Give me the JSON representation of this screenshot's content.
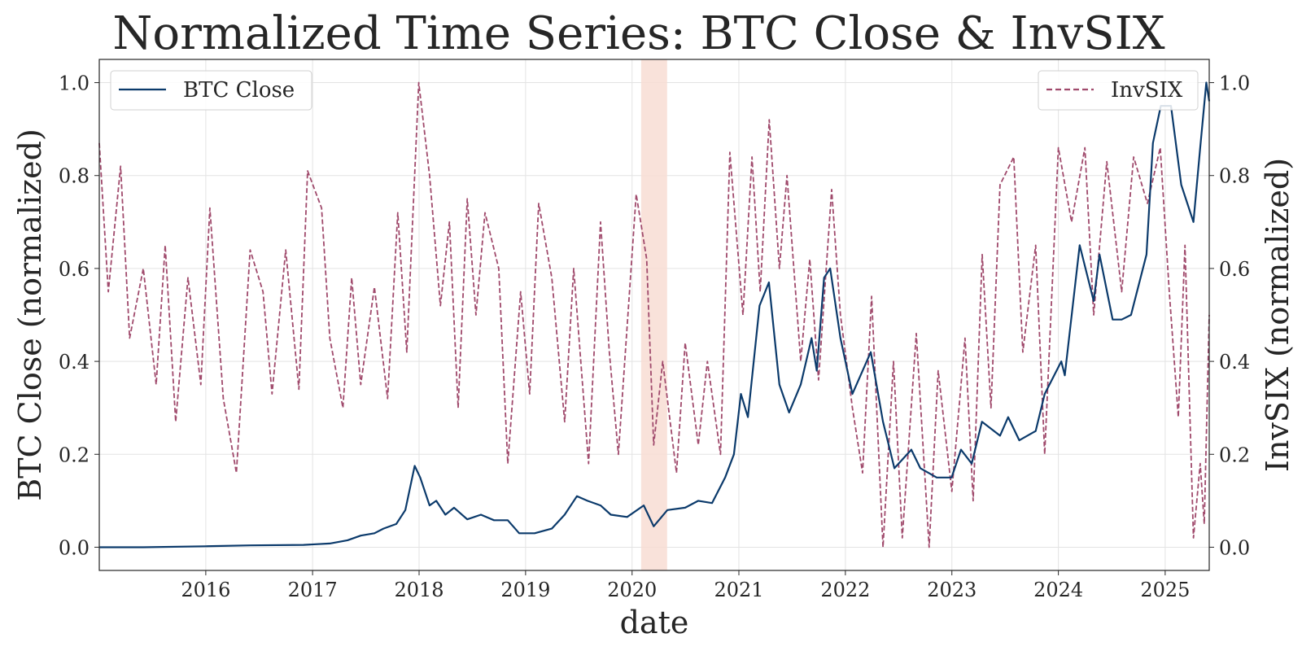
{
  "chart_data": {
    "type": "line",
    "title": "Normalized Time Series: BTC Close & InvSIX",
    "xlabel": "date",
    "ylabel_left": "BTC Close (normalized)",
    "ylabel_right": "InvSIX (normalized)",
    "xlim": [
      "2015-01-01",
      "2025-06-01"
    ],
    "x_ticks": [
      "2016",
      "2017",
      "2018",
      "2019",
      "2020",
      "2021",
      "2022",
      "2023",
      "2024",
      "2025"
    ],
    "ylim_left": [
      -0.05,
      1.05
    ],
    "ylim_right": [
      -0.05,
      1.05
    ],
    "y_ticks": [
      "0.0",
      "0.2",
      "0.4",
      "0.6",
      "0.8",
      "1.0"
    ],
    "grid": true,
    "shaded_region": {
      "start": "2020-02-01",
      "end": "2020-04-30",
      "color": "#f8ddd3"
    },
    "legends": [
      {
        "series": "BTC Close",
        "placement": "top-left"
      },
      {
        "series": "InvSIX",
        "placement": "top-right"
      }
    ],
    "series": [
      {
        "name": "BTC Close",
        "axis": "left",
        "style": "solid",
        "color": "#0b3a6b",
        "points": [
          [
            "2015-01-01",
            0.0
          ],
          [
            "2015-06-01",
            0.0
          ],
          [
            "2016-01-01",
            0.002
          ],
          [
            "2016-06-01",
            0.004
          ],
          [
            "2016-12-01",
            0.005
          ],
          [
            "2017-03-01",
            0.008
          ],
          [
            "2017-05-01",
            0.015
          ],
          [
            "2017-06-15",
            0.025
          ],
          [
            "2017-08-01",
            0.03
          ],
          [
            "2017-09-01",
            0.04
          ],
          [
            "2017-10-15",
            0.05
          ],
          [
            "2017-11-15",
            0.08
          ],
          [
            "2017-12-17",
            0.175
          ],
          [
            "2018-01-05",
            0.15
          ],
          [
            "2018-02-06",
            0.09
          ],
          [
            "2018-03-01",
            0.1
          ],
          [
            "2018-04-01",
            0.07
          ],
          [
            "2018-05-01",
            0.085
          ],
          [
            "2018-06-15",
            0.06
          ],
          [
            "2018-08-01",
            0.07
          ],
          [
            "2018-09-15",
            0.058
          ],
          [
            "2018-11-01",
            0.058
          ],
          [
            "2018-12-10",
            0.03
          ],
          [
            "2019-02-01",
            0.03
          ],
          [
            "2019-04-01",
            0.04
          ],
          [
            "2019-05-15",
            0.07
          ],
          [
            "2019-06-26",
            0.11
          ],
          [
            "2019-08-01",
            0.1
          ],
          [
            "2019-09-15",
            0.09
          ],
          [
            "2019-10-20",
            0.07
          ],
          [
            "2019-12-15",
            0.065
          ],
          [
            "2020-02-10",
            0.09
          ],
          [
            "2020-03-15",
            0.045
          ],
          [
            "2020-05-01",
            0.08
          ],
          [
            "2020-07-01",
            0.085
          ],
          [
            "2020-08-15",
            0.1
          ],
          [
            "2020-10-01",
            0.095
          ],
          [
            "2020-11-15",
            0.15
          ],
          [
            "2020-12-15",
            0.2
          ],
          [
            "2021-01-08",
            0.33
          ],
          [
            "2021-02-01",
            0.28
          ],
          [
            "2021-03-13",
            0.52
          ],
          [
            "2021-04-14",
            0.57
          ],
          [
            "2021-05-20",
            0.35
          ],
          [
            "2021-06-22",
            0.29
          ],
          [
            "2021-08-01",
            0.35
          ],
          [
            "2021-09-07",
            0.45
          ],
          [
            "2021-09-25",
            0.38
          ],
          [
            "2021-10-20",
            0.58
          ],
          [
            "2021-11-10",
            0.6
          ],
          [
            "2021-12-15",
            0.45
          ],
          [
            "2022-01-25",
            0.33
          ],
          [
            "2022-03-29",
            0.42
          ],
          [
            "2022-05-10",
            0.27
          ],
          [
            "2022-06-18",
            0.17
          ],
          [
            "2022-08-15",
            0.21
          ],
          [
            "2022-09-15",
            0.17
          ],
          [
            "2022-11-10",
            0.15
          ],
          [
            "2022-12-31",
            0.15
          ],
          [
            "2023-02-01",
            0.21
          ],
          [
            "2023-03-10",
            0.18
          ],
          [
            "2023-04-14",
            0.27
          ],
          [
            "2023-06-15",
            0.24
          ],
          [
            "2023-07-13",
            0.28
          ],
          [
            "2023-08-20",
            0.23
          ],
          [
            "2023-10-15",
            0.25
          ],
          [
            "2023-11-15",
            0.33
          ],
          [
            "2024-01-11",
            0.4
          ],
          [
            "2024-01-23",
            0.37
          ],
          [
            "2024-03-14",
            0.65
          ],
          [
            "2024-05-01",
            0.53
          ],
          [
            "2024-05-21",
            0.63
          ],
          [
            "2024-07-05",
            0.49
          ],
          [
            "2024-08-05",
            0.49
          ],
          [
            "2024-09-06",
            0.5
          ],
          [
            "2024-10-29",
            0.63
          ],
          [
            "2024-11-20",
            0.87
          ],
          [
            "2024-12-17",
            0.95
          ],
          [
            "2025-01-21",
            0.95
          ],
          [
            "2025-02-25",
            0.78
          ],
          [
            "2025-04-08",
            0.7
          ],
          [
            "2025-05-01",
            0.86
          ],
          [
            "2025-05-22",
            1.0
          ],
          [
            "2025-06-01",
            0.96
          ]
        ]
      },
      {
        "name": "InvSIX",
        "axis": "right",
        "style": "dashed",
        "color": "#a04a6c",
        "points": [
          [
            "2015-01-01",
            0.87
          ],
          [
            "2015-02-01",
            0.55
          ],
          [
            "2015-03-15",
            0.82
          ],
          [
            "2015-04-15",
            0.45
          ],
          [
            "2015-06-01",
            0.6
          ],
          [
            "2015-07-15",
            0.35
          ],
          [
            "2015-08-15",
            0.65
          ],
          [
            "2015-09-20",
            0.27
          ],
          [
            "2015-11-01",
            0.58
          ],
          [
            "2015-12-15",
            0.35
          ],
          [
            "2016-01-15",
            0.73
          ],
          [
            "2016-03-01",
            0.32
          ],
          [
            "2016-04-15",
            0.16
          ],
          [
            "2016-06-01",
            0.64
          ],
          [
            "2016-07-15",
            0.55
          ],
          [
            "2016-08-15",
            0.33
          ],
          [
            "2016-10-01",
            0.64
          ],
          [
            "2016-11-15",
            0.34
          ],
          [
            "2016-12-15",
            0.81
          ],
          [
            "2017-02-01",
            0.73
          ],
          [
            "2017-03-01",
            0.45
          ],
          [
            "2017-04-15",
            0.3
          ],
          [
            "2017-05-15",
            0.58
          ],
          [
            "2017-06-15",
            0.35
          ],
          [
            "2017-08-01",
            0.56
          ],
          [
            "2017-09-15",
            0.32
          ],
          [
            "2017-10-20",
            0.72
          ],
          [
            "2017-11-20",
            0.42
          ],
          [
            "2017-12-31",
            1.0
          ],
          [
            "2018-02-06",
            0.8
          ],
          [
            "2018-03-15",
            0.52
          ],
          [
            "2018-04-15",
            0.7
          ],
          [
            "2018-05-15",
            0.3
          ],
          [
            "2018-06-15",
            0.75
          ],
          [
            "2018-07-15",
            0.5
          ],
          [
            "2018-08-15",
            0.72
          ],
          [
            "2018-10-01",
            0.6
          ],
          [
            "2018-11-01",
            0.18
          ],
          [
            "2018-12-15",
            0.55
          ],
          [
            "2019-01-15",
            0.33
          ],
          [
            "2019-02-15",
            0.74
          ],
          [
            "2019-04-01",
            0.58
          ],
          [
            "2019-05-15",
            0.27
          ],
          [
            "2019-06-15",
            0.6
          ],
          [
            "2019-08-05",
            0.18
          ],
          [
            "2019-09-15",
            0.7
          ],
          [
            "2019-10-15",
            0.42
          ],
          [
            "2019-11-15",
            0.2
          ],
          [
            "2020-01-15",
            0.76
          ],
          [
            "2020-02-20",
            0.62
          ],
          [
            "2020-03-15",
            0.22
          ],
          [
            "2020-04-15",
            0.4
          ],
          [
            "2020-06-01",
            0.16
          ],
          [
            "2020-07-01",
            0.44
          ],
          [
            "2020-08-15",
            0.22
          ],
          [
            "2020-09-15",
            0.4
          ],
          [
            "2020-10-30",
            0.2
          ],
          [
            "2020-12-01",
            0.85
          ],
          [
            "2021-01-15",
            0.5
          ],
          [
            "2021-02-15",
            0.84
          ],
          [
            "2021-03-15",
            0.55
          ],
          [
            "2021-04-15",
            0.92
          ],
          [
            "2021-05-20",
            0.6
          ],
          [
            "2021-06-15",
            0.8
          ],
          [
            "2021-08-01",
            0.4
          ],
          [
            "2021-09-01",
            0.62
          ],
          [
            "2021-10-01",
            0.36
          ],
          [
            "2021-11-15",
            0.77
          ],
          [
            "2021-12-15",
            0.5
          ],
          [
            "2022-01-25",
            0.3
          ],
          [
            "2022-03-01",
            0.16
          ],
          [
            "2022-04-01",
            0.54
          ],
          [
            "2022-05-10",
            0.0
          ],
          [
            "2022-06-15",
            0.4
          ],
          [
            "2022-07-15",
            0.02
          ],
          [
            "2022-09-01",
            0.46
          ],
          [
            "2022-10-15",
            0.0
          ],
          [
            "2022-11-15",
            0.38
          ],
          [
            "2023-01-01",
            0.12
          ],
          [
            "2023-02-15",
            0.45
          ],
          [
            "2023-03-15",
            0.1
          ],
          [
            "2023-04-15",
            0.63
          ],
          [
            "2023-05-15",
            0.3
          ],
          [
            "2023-06-15",
            0.78
          ],
          [
            "2023-08-01",
            0.84
          ],
          [
            "2023-09-01",
            0.42
          ],
          [
            "2023-10-15",
            0.65
          ],
          [
            "2023-11-15",
            0.2
          ],
          [
            "2024-01-01",
            0.86
          ],
          [
            "2024-02-15",
            0.7
          ],
          [
            "2024-04-01",
            0.86
          ],
          [
            "2024-05-01",
            0.5
          ],
          [
            "2024-06-15",
            0.83
          ],
          [
            "2024-08-05",
            0.55
          ],
          [
            "2024-09-15",
            0.84
          ],
          [
            "2024-11-01",
            0.74
          ],
          [
            "2024-12-15",
            0.86
          ],
          [
            "2025-01-15",
            0.55
          ],
          [
            "2025-02-15",
            0.28
          ],
          [
            "2025-03-10",
            0.65
          ],
          [
            "2025-04-08",
            0.02
          ],
          [
            "2025-05-01",
            0.18
          ],
          [
            "2025-05-15",
            0.05
          ],
          [
            "2025-06-01",
            0.5
          ]
        ]
      }
    ]
  }
}
